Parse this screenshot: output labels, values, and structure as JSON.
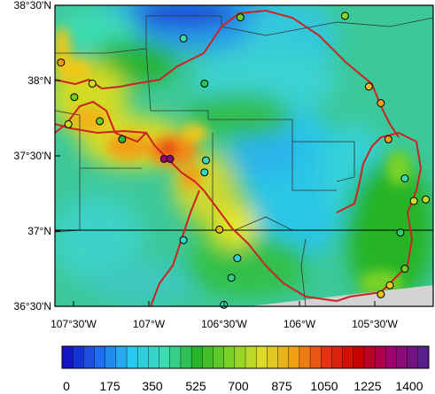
{
  "map": {
    "lat_labels": [
      "38°30'N",
      "38°N",
      "37°30'N",
      "37°N",
      "36°30'N"
    ],
    "lon_labels": [
      "107°30'W",
      "107°W",
      "106°30'W",
      "106°W",
      "105°30'W"
    ],
    "extent": {
      "lon_min": -107.58,
      "lon_max": -105.05,
      "lat_min": 36.5,
      "lat_max": 38.5
    },
    "no_data_color": "#d3d3d3",
    "border_color": "#cc2222",
    "county_line_color": "#333333"
  },
  "colorbar": {
    "labels": [
      "0",
      "175",
      "350",
      "525",
      "700",
      "875",
      "1050",
      "1225",
      "1400"
    ],
    "min": 0,
    "max": 1487.5,
    "step": 43.75,
    "colors_stops": [
      "#1414c8",
      "#1e6ef0",
      "#28c8f0",
      "#3cdcb4",
      "#28b428",
      "#78d228",
      "#dcdc28",
      "#f0a014",
      "#e63214",
      "#c80000",
      "#a0006e",
      "#5a1e8c"
    ]
  },
  "stations": [
    {
      "lon": -106.34,
      "lat": 38.42,
      "value": 650
    },
    {
      "lon": -105.64,
      "lat": 38.43,
      "value": 700
    },
    {
      "lon": -106.72,
      "lat": 38.28,
      "value": 420
    },
    {
      "lon": -107.54,
      "lat": 38.12,
      "value": 950
    },
    {
      "lon": -107.33,
      "lat": 37.98,
      "value": 820
    },
    {
      "lon": -107.45,
      "lat": 37.89,
      "value": 650
    },
    {
      "lon": -106.58,
      "lat": 37.98,
      "value": 500
    },
    {
      "lon": -105.48,
      "lat": 37.96,
      "value": 880
    },
    {
      "lon": -105.4,
      "lat": 37.85,
      "value": 950
    },
    {
      "lon": -107.49,
      "lat": 37.71,
      "value": 780
    },
    {
      "lon": -107.28,
      "lat": 37.73,
      "value": 650
    },
    {
      "lon": -107.13,
      "lat": 37.61,
      "value": 520
    },
    {
      "lon": -106.85,
      "lat": 37.48,
      "value": 1350
    },
    {
      "lon": -106.81,
      "lat": 37.48,
      "value": 1400
    },
    {
      "lon": -106.57,
      "lat": 37.47,
      "value": 400
    },
    {
      "lon": -106.58,
      "lat": 37.39,
      "value": 380
    },
    {
      "lon": -105.35,
      "lat": 37.61,
      "value": 950
    },
    {
      "lon": -105.24,
      "lat": 37.35,
      "value": 400
    },
    {
      "lon": -105.18,
      "lat": 37.2,
      "value": 800
    },
    {
      "lon": -105.1,
      "lat": 37.21,
      "value": 780
    },
    {
      "lon": -106.48,
      "lat": 37.01,
      "value": 900
    },
    {
      "lon": -106.72,
      "lat": 36.94,
      "value": 380
    },
    {
      "lon": -106.36,
      "lat": 36.82,
      "value": 320
    },
    {
      "lon": -106.4,
      "lat": 36.69,
      "value": 450
    },
    {
      "lon": -105.27,
      "lat": 36.99,
      "value": 470
    },
    {
      "lon": -105.24,
      "lat": 36.75,
      "value": 660
    },
    {
      "lon": -105.34,
      "lat": 36.64,
      "value": 850
    },
    {
      "lon": -105.4,
      "lat": 36.58,
      "value": 870
    },
    {
      "lon": -106.45,
      "lat": 36.51,
      "value": 400
    }
  ]
}
